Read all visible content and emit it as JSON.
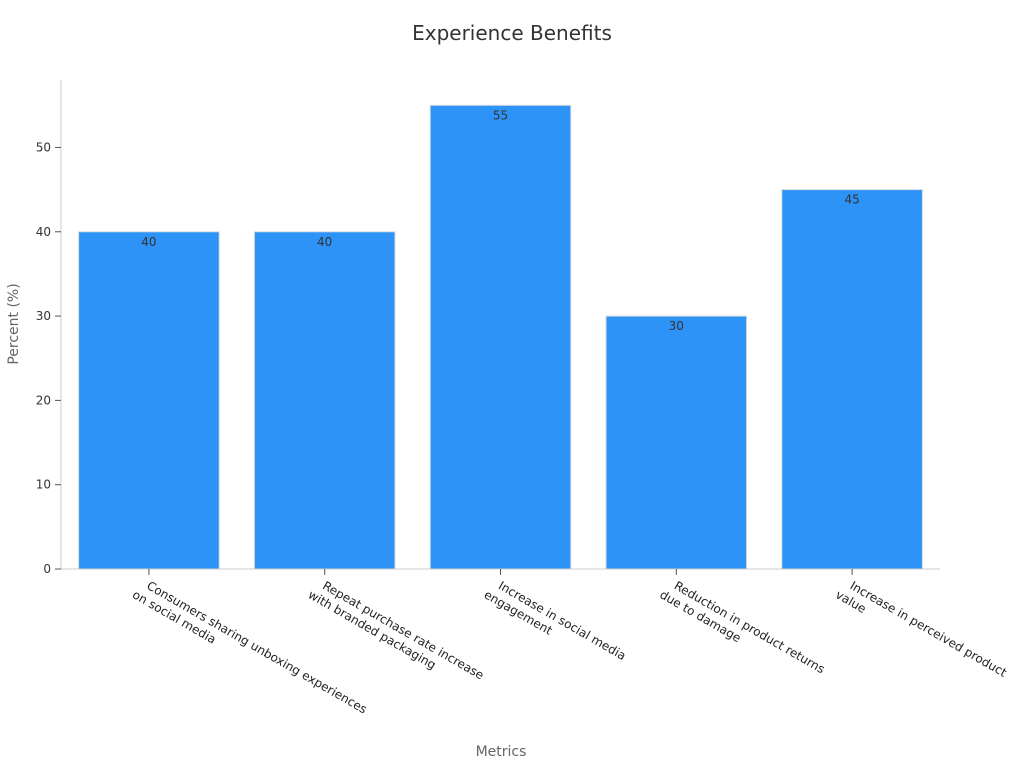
{
  "chart_data": {
    "type": "bar",
    "title": "Experience Benefits",
    "xlabel": "Metrics",
    "ylabel": "Percent (%)",
    "categories": [
      [
        "Consumers sharing unboxing experiences",
        "on social media"
      ],
      [
        "Repeat purchase rate increase",
        "with branded packaging"
      ],
      [
        "Increase in social media",
        "engagement"
      ],
      [
        "Reduction in product returns",
        "due to damage"
      ],
      [
        "Increase in perceived product",
        "value"
      ]
    ],
    "values": [
      40,
      40,
      55,
      30,
      45
    ],
    "ylim": [
      0,
      58
    ],
    "yticks": [
      0,
      10,
      20,
      30,
      40,
      50
    ],
    "grid": false,
    "legend": "none",
    "colors": {
      "bar": "#2e93f7",
      "bar_edge": "#dddddd",
      "axis": "#cccccc"
    }
  }
}
